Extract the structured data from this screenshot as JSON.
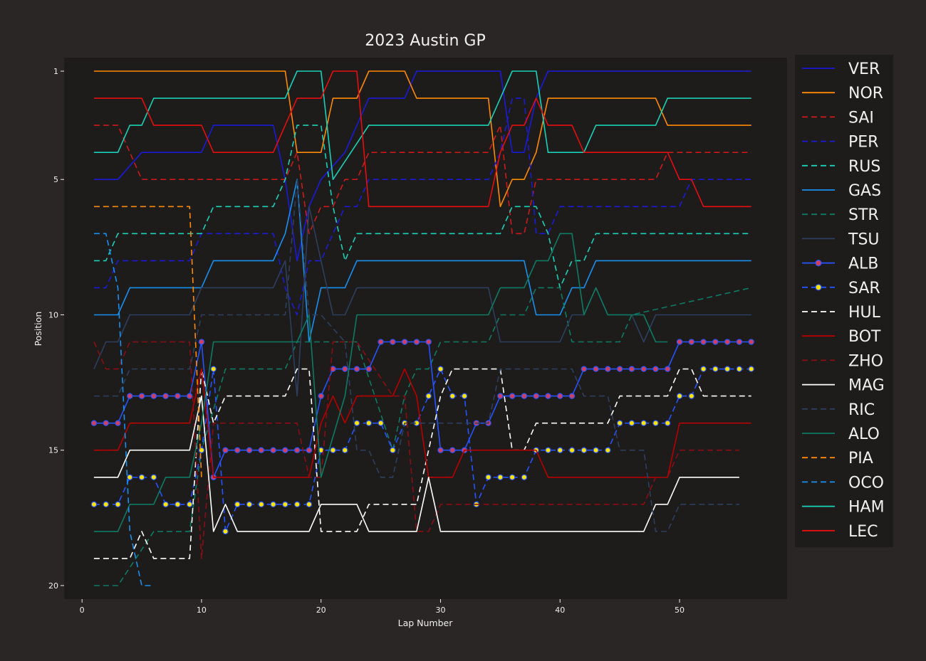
{
  "chart_data": {
    "type": "line",
    "title": "2023 Austin GP",
    "xlabel": "Lap Number",
    "ylabel": "Position",
    "xlim": [
      -1.5,
      59
    ],
    "ylim": [
      20.5,
      0.5
    ],
    "x_ticks": [
      0,
      10,
      20,
      30,
      40,
      50
    ],
    "y_ticks": [
      1,
      5,
      10,
      15,
      20
    ],
    "grid": false,
    "legend_position": "outside-right",
    "colors": {
      "background": "#292625",
      "plot_background": "#1e1c1b",
      "text": "#f0f0f0"
    },
    "series": [
      {
        "name": "VER",
        "color": "#1a1ad9",
        "dash": "solid",
        "marker": "none",
        "x": [
          1,
          3,
          5,
          10,
          11,
          16,
          17,
          18,
          19,
          20,
          22,
          23,
          24,
          26,
          27,
          28,
          29,
          35,
          36,
          37,
          38,
          39,
          56
        ],
        "y": [
          5,
          5,
          4,
          4,
          3,
          3,
          5,
          8,
          6,
          5,
          4,
          3,
          2,
          2,
          2,
          1,
          1,
          1,
          4,
          4,
          2,
          1,
          1
        ]
      },
      {
        "name": "NOR",
        "color": "#ff8a00",
        "dash": "solid",
        "marker": "none",
        "x": [
          1,
          17,
          18,
          20,
          21,
          23,
          24,
          27,
          28,
          34,
          35,
          36,
          37,
          38,
          39,
          48,
          49,
          56
        ],
        "y": [
          1,
          1,
          4,
          4,
          2,
          2,
          1,
          1,
          2,
          2,
          6,
          5,
          5,
          4,
          2,
          2,
          3,
          3
        ]
      },
      {
        "name": "SAI",
        "color": "#cc1a1a",
        "dash": "dashed",
        "marker": "none",
        "x": [
          1,
          3,
          5,
          17,
          18,
          19,
          20,
          21,
          22,
          23,
          24,
          33,
          34,
          35,
          36,
          37,
          38,
          39,
          48,
          49,
          56
        ],
        "y": [
          3,
          3,
          5,
          5,
          4,
          7,
          6,
          6,
          5,
          5,
          4,
          4,
          4,
          3,
          7,
          7,
          5,
          5,
          5,
          4,
          4
        ]
      },
      {
        "name": "PER",
        "color": "#1a1ad9",
        "dash": "dashed",
        "marker": "none",
        "x": [
          1,
          2,
          3,
          9,
          10,
          16,
          17,
          18,
          19,
          20,
          22,
          23,
          24,
          34,
          35,
          36,
          37,
          38,
          39,
          40,
          41,
          50,
          51,
          56
        ],
        "y": [
          9,
          9,
          8,
          8,
          7,
          7,
          9,
          10,
          8,
          8,
          6,
          6,
          5,
          5,
          4,
          2,
          2,
          7,
          7,
          6,
          6,
          6,
          5,
          5
        ]
      },
      {
        "name": "RUS",
        "color": "#19d1b8",
        "dash": "dashed",
        "marker": "none",
        "x": [
          1,
          2,
          3,
          9,
          10,
          11,
          16,
          17,
          18,
          20,
          21,
          22,
          23,
          34,
          35,
          36,
          37,
          38,
          39,
          40,
          41,
          42,
          43,
          56
        ],
        "y": [
          8,
          8,
          7,
          7,
          7,
          6,
          6,
          5,
          3,
          3,
          6,
          8,
          7,
          7,
          7,
          6,
          6,
          6,
          7,
          9,
          8,
          8,
          7,
          7
        ]
      },
      {
        "name": "GAS",
        "color": "#1890f0",
        "dash": "solid",
        "marker": "none",
        "x": [
          1,
          3,
          4,
          9,
          10,
          11,
          16,
          17,
          18,
          19,
          20,
          22,
          23,
          37,
          38,
          40,
          41,
          42,
          43,
          56
        ],
        "y": [
          10,
          10,
          9,
          9,
          9,
          8,
          8,
          7,
          5,
          11,
          9,
          9,
          8,
          8,
          10,
          10,
          9,
          9,
          8,
          8
        ]
      },
      {
        "name": "STR",
        "color": "#0d7a63",
        "dash": "dashed",
        "marker": "none",
        "x": [
          1,
          3,
          6,
          9,
          10,
          12,
          17,
          18,
          19,
          20,
          21,
          22,
          23,
          26,
          27,
          28,
          29,
          30,
          31,
          34,
          35,
          37,
          38,
          39,
          40,
          41,
          42,
          45,
          46,
          56
        ],
        "y": [
          20,
          20,
          18,
          18,
          15,
          12,
          12,
          11,
          11,
          11,
          11,
          11,
          11,
          15,
          13,
          12,
          12,
          11,
          11,
          11,
          10,
          10,
          9,
          9,
          9,
          11,
          11,
          11,
          10,
          9
        ]
      },
      {
        "name": "TSU",
        "color": "#2c3f5e",
        "dash": "solid",
        "marker": "none",
        "x": [
          1,
          2,
          3,
          4,
          9,
          10,
          16,
          17,
          18,
          19,
          20,
          21,
          22,
          23,
          34,
          35,
          40,
          41,
          42,
          43,
          44,
          46,
          47,
          48,
          56
        ],
        "y": [
          12,
          11,
          11,
          10,
          10,
          9,
          9,
          8,
          13,
          6,
          8,
          10,
          10,
          9,
          9,
          11,
          11,
          10,
          10,
          9,
          10,
          10,
          11,
          10,
          10
        ]
      },
      {
        "name": "ALB",
        "color": "#2453ff",
        "dash": "solid",
        "marker": "circle",
        "marker_face": "#d23f5e",
        "marker_edge": "#2453ff",
        "x": [
          1,
          2,
          3,
          4,
          5,
          6,
          7,
          8,
          9,
          10,
          11,
          12,
          13,
          14,
          15,
          16,
          17,
          18,
          19,
          20,
          21,
          22,
          23,
          24,
          25,
          26,
          27,
          28,
          29,
          30,
          31,
          32,
          33,
          34,
          35,
          36,
          37,
          38,
          39,
          40,
          41,
          42,
          43,
          44,
          45,
          46,
          47,
          48,
          49,
          50,
          51,
          52,
          53,
          54,
          55,
          56
        ],
        "y": [
          14,
          14,
          14,
          13,
          13,
          13,
          13,
          13,
          13,
          11,
          16,
          15,
          15,
          15,
          15,
          15,
          15,
          15,
          15,
          13,
          12,
          12,
          12,
          12,
          11,
          11,
          11,
          11,
          11,
          15,
          15,
          15,
          14,
          14,
          13,
          13,
          13,
          13,
          13,
          13,
          13,
          12,
          12,
          12,
          12,
          12,
          12,
          12,
          12,
          11,
          11,
          11,
          11,
          11,
          11,
          11
        ]
      },
      {
        "name": "SAR",
        "color": "#2453ff",
        "dash": "dashed",
        "marker": "circle",
        "marker_face": "#ffe500",
        "marker_edge": "#2453ff",
        "x": [
          1,
          2,
          3,
          4,
          5,
          6,
          7,
          8,
          9,
          10,
          11,
          12,
          13,
          14,
          15,
          16,
          17,
          18,
          19,
          20,
          21,
          22,
          23,
          24,
          25,
          26,
          27,
          28,
          29,
          30,
          31,
          32,
          33,
          34,
          35,
          36,
          37,
          38,
          39,
          40,
          41,
          42,
          43,
          44,
          45,
          46,
          47,
          48,
          49,
          50,
          51,
          52,
          53,
          54,
          55,
          56
        ],
        "y": [
          17,
          17,
          17,
          16,
          16,
          16,
          17,
          17,
          17,
          15,
          12,
          18,
          17,
          17,
          17,
          17,
          17,
          17,
          17,
          15,
          15,
          15,
          14,
          14,
          14,
          15,
          14,
          14,
          13,
          12,
          13,
          13,
          17,
          16,
          16,
          16,
          16,
          15,
          15,
          15,
          15,
          15,
          15,
          15,
          14,
          14,
          14,
          14,
          14,
          13,
          13,
          12,
          12,
          12,
          12,
          12
        ]
      },
      {
        "name": "HUL",
        "color": "#ffffff",
        "dash": "dashed",
        "marker": "none",
        "x": [
          1,
          4,
          5,
          6,
          9,
          10,
          11,
          12,
          17,
          18,
          19,
          20,
          23,
          24,
          28,
          29,
          30,
          31,
          35,
          36,
          37,
          38,
          44,
          45,
          49,
          50,
          51,
          52,
          56
        ],
        "y": [
          19,
          19,
          18,
          19,
          19,
          12,
          14,
          13,
          13,
          12,
          12,
          18,
          18,
          17,
          17,
          15,
          13,
          12,
          12,
          15,
          15,
          14,
          14,
          13,
          13,
          12,
          12,
          13,
          13
        ]
      },
      {
        "name": "BOT",
        "color": "#b80000",
        "dash": "solid",
        "marker": "none",
        "x": [
          1,
          3,
          4,
          9,
          10,
          11,
          19,
          20,
          21,
          22,
          23,
          24,
          26,
          27,
          28,
          29,
          30,
          31,
          32,
          33,
          34,
          38,
          39,
          49,
          50,
          56
        ],
        "y": [
          15,
          15,
          14,
          14,
          12,
          16,
          16,
          14,
          13,
          14,
          13,
          13,
          13,
          12,
          13,
          16,
          16,
          16,
          15,
          15,
          15,
          15,
          16,
          16,
          14,
          14
        ]
      },
      {
        "name": "ZHO",
        "color": "#8a0d14",
        "dash": "dashed",
        "marker": "none",
        "x": [
          1,
          2,
          3,
          4,
          9,
          10,
          11,
          17,
          18,
          19,
          20,
          21,
          23,
          26,
          27,
          28,
          29,
          30,
          31,
          34,
          35,
          47,
          48,
          49,
          50,
          55
        ],
        "y": [
          11,
          12,
          12,
          11,
          11,
          19,
          14,
          14,
          14,
          16,
          16,
          11,
          11,
          13,
          13,
          18,
          18,
          17,
          17,
          17,
          17,
          17,
          16,
          16,
          15,
          15
        ]
      },
      {
        "name": "MAG",
        "color": "#ffffff",
        "dash": "solid",
        "marker": "none",
        "x": [
          1,
          3,
          4,
          9,
          10,
          11,
          12,
          13,
          19,
          20,
          23,
          24,
          28,
          29,
          30,
          47,
          48,
          49,
          50,
          55
        ],
        "y": [
          16,
          16,
          15,
          15,
          13,
          18,
          17,
          18,
          18,
          17,
          17,
          18,
          18,
          16,
          18,
          18,
          17,
          17,
          16,
          16
        ]
      },
      {
        "name": "RIC",
        "color": "#2c3f5e",
        "dash": "dashed",
        "marker": "none",
        "x": [
          1,
          3,
          4,
          9,
          10,
          17,
          18,
          19,
          20,
          22,
          23,
          24,
          25,
          26,
          27,
          34,
          35,
          41,
          42,
          44,
          45,
          47,
          48,
          49,
          50,
          55
        ],
        "y": [
          13,
          13,
          12,
          12,
          10,
          10,
          5,
          10,
          10,
          11,
          15,
          15,
          16,
          16,
          14,
          14,
          12,
          12,
          13,
          13,
          15,
          15,
          18,
          18,
          17,
          17
        ]
      },
      {
        "name": "ALO",
        "color": "#0d7a63",
        "dash": "solid",
        "marker": "none",
        "x": [
          1,
          3,
          4,
          6,
          7,
          9,
          10,
          11,
          17,
          18,
          19,
          20,
          22,
          23,
          34,
          35,
          37,
          38,
          39,
          40,
          41,
          42,
          43,
          44,
          46,
          47,
          48,
          49
        ],
        "y": [
          18,
          18,
          17,
          17,
          16,
          16,
          14,
          11,
          11,
          11,
          10,
          16,
          13,
          10,
          10,
          9,
          9,
          8,
          8,
          7,
          7,
          10,
          9,
          10,
          10,
          10,
          11,
          11
        ]
      },
      {
        "name": "PIA",
        "color": "#ff8a00",
        "dash": "dashed",
        "marker": "none",
        "x": [
          1,
          9,
          10
        ],
        "y": [
          6,
          6,
          16
        ]
      },
      {
        "name": "OCO",
        "color": "#1890f0",
        "dash": "dashed",
        "marker": "none",
        "x": [
          1,
          2,
          3,
          4,
          5,
          6
        ],
        "y": [
          7,
          7,
          9,
          18,
          20,
          20
        ]
      },
      {
        "name": "HAM",
        "color": "#19d1b8",
        "dash": "solid",
        "marker": "none",
        "x": [
          1,
          3,
          4,
          5,
          6,
          17,
          18,
          20,
          21,
          24,
          25,
          34,
          35,
          36,
          37,
          38,
          39,
          40,
          41,
          42,
          43,
          44,
          48,
          49,
          56
        ],
        "y": [
          4,
          4,
          3,
          3,
          2,
          2,
          1,
          1,
          5,
          3,
          3,
          3,
          2,
          1,
          1,
          1,
          4,
          4,
          4,
          4,
          3,
          3,
          3,
          2,
          2
        ]
      },
      {
        "name": "LEC",
        "color": "#e60e0e",
        "dash": "solid",
        "marker": "none",
        "x": [
          1,
          5,
          6,
          10,
          11,
          16,
          17,
          18,
          20,
          21,
          23,
          24,
          34,
          35,
          36,
          37,
          38,
          39,
          41,
          42,
          43,
          49,
          50,
          51,
          52,
          56
        ],
        "y": [
          2,
          2,
          3,
          3,
          4,
          4,
          3,
          2,
          2,
          1,
          1,
          6,
          6,
          4,
          3,
          3,
          2,
          3,
          3,
          4,
          4,
          4,
          5,
          5,
          6,
          6
        ]
      }
    ]
  }
}
